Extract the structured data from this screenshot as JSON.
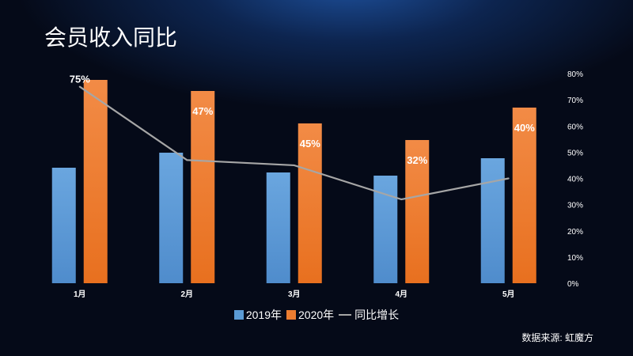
{
  "title": "会员收入同比",
  "source": "数据来源: 虹魔方",
  "chart_data": {
    "type": "bar",
    "title": "会员收入同比",
    "categories": [
      "1月",
      "2月",
      "3月",
      "4月",
      "5月"
    ],
    "series": [
      {
        "name": "2019年",
        "type": "bar",
        "axis": "left",
        "color": "#5b9bd5",
        "values": [
          146,
          165,
          140,
          136,
          158
        ]
      },
      {
        "name": "2020年",
        "type": "bar",
        "axis": "left",
        "color": "#ed7d31",
        "values": [
          257,
          243,
          202,
          181,
          222
        ]
      },
      {
        "name": "同比增长",
        "type": "line",
        "axis": "right",
        "color": "#a6a6a6",
        "values": [
          75,
          47,
          45,
          32,
          40
        ],
        "data_labels": [
          "75%",
          "47%",
          "45%",
          "32%",
          "40%"
        ]
      }
    ],
    "left_axis_visible": false,
    "right_axis": {
      "ylim": [
        0,
        80
      ],
      "ticks": [
        "0%",
        "10%",
        "20%",
        "30%",
        "40%",
        "50%",
        "60%",
        "70%",
        "80%"
      ]
    },
    "grid": false,
    "legend": "bottom"
  }
}
